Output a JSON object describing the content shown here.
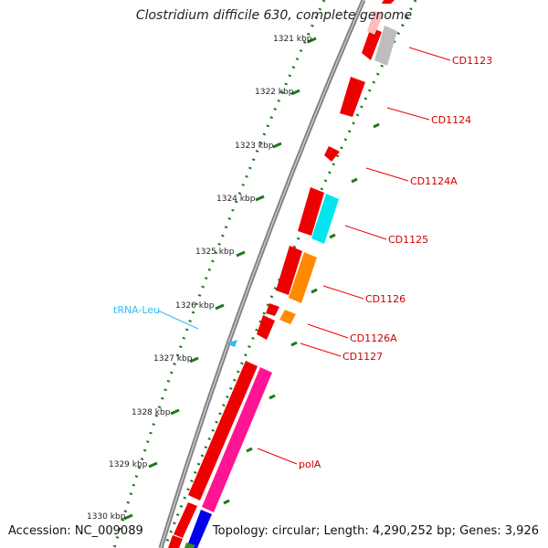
{
  "title": "Clostridium difficile 630, complete genome",
  "accession": "Accession: NC_009089",
  "topology": "Topology: circular; Length: 4,290,252 bp; Genes: 3,926",
  "colors": {
    "backbone": "#7f7f7f",
    "ticks": "#1a7a1a",
    "cds": "#ff0000",
    "trna": "#33bbee",
    "label": "#cc0000"
  },
  "scale_labels": [
    "1321 kbp",
    "1322 kbp",
    "1323 kbp",
    "1324 kbp",
    "1325 kbp",
    "1326 kbp",
    "1327 kbp",
    "1328 kbp",
    "1329 kbp",
    "1330 kbp"
  ],
  "gene_labels": [
    "CD1123",
    "CD1124",
    "CD1124A",
    "CD1125",
    "CD1126",
    "CD1126A",
    "CD1127",
    "polA"
  ],
  "trna_label": "tRNA-Leu"
}
